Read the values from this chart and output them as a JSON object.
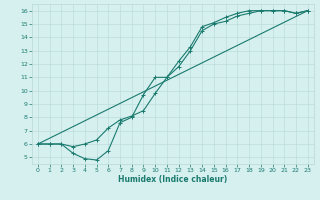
{
  "xlabel": "Humidex (Indice chaleur)",
  "bg_color": "#d6f0f0",
  "line_color": "#1a7a6e",
  "grid_color": "#b8d8d8",
  "xlim": [
    -0.5,
    23.5
  ],
  "ylim": [
    4.5,
    16.5
  ],
  "xticks": [
    0,
    1,
    2,
    3,
    4,
    5,
    6,
    7,
    8,
    9,
    10,
    11,
    12,
    13,
    14,
    15,
    16,
    17,
    18,
    19,
    20,
    21,
    22,
    23
  ],
  "yticks": [
    5,
    6,
    7,
    8,
    9,
    10,
    11,
    12,
    13,
    14,
    15,
    16
  ],
  "line1_x": [
    0,
    1,
    2,
    3,
    4,
    5,
    6,
    7,
    8,
    9,
    10,
    11,
    12,
    13,
    14,
    15,
    16,
    17,
    18,
    19,
    20,
    21,
    22,
    23
  ],
  "line1_y": [
    6.0,
    6.0,
    6.0,
    5.8,
    6.0,
    6.3,
    7.2,
    7.8,
    8.1,
    8.5,
    9.8,
    11.0,
    11.8,
    13.0,
    14.5,
    15.0,
    15.2,
    15.6,
    15.8,
    16.0,
    16.0,
    16.0,
    15.8,
    16.0
  ],
  "line2_x": [
    0,
    1,
    2,
    3,
    4,
    5,
    6,
    7,
    8,
    9,
    10,
    11,
    12,
    13,
    14,
    15,
    16,
    17,
    18,
    19,
    20,
    21,
    22,
    23
  ],
  "line2_y": [
    6.0,
    6.0,
    6.0,
    5.3,
    4.9,
    4.8,
    5.5,
    7.6,
    8.0,
    9.7,
    11.0,
    11.0,
    12.2,
    13.3,
    14.8,
    15.1,
    15.5,
    15.8,
    16.0,
    16.0,
    16.0,
    16.0,
    15.8,
    16.0
  ],
  "line3_x": [
    0,
    23
  ],
  "line3_y": [
    6.0,
    16.0
  ]
}
